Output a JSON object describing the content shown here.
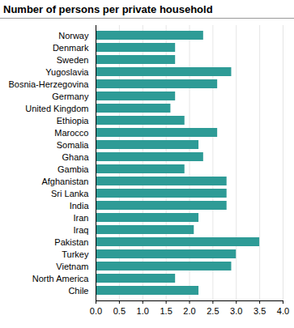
{
  "chart_data": {
    "type": "bar",
    "orientation": "horizontal",
    "title": "Number of persons per private household",
    "categories": [
      "Norway",
      "Denmark",
      "Sweden",
      "Yugoslavia",
      "Bosnia-Herzegovina",
      "Germany",
      "United Kingdom",
      "Ethiopia",
      "Marocco",
      "Somalia",
      "Ghana",
      "Gambia",
      "Afghanistan",
      "Sri Lanka",
      "India",
      "Iran",
      "Iraq",
      "Pakistan",
      "Turkey",
      "Vietnam",
      "North America",
      "Chile"
    ],
    "values": [
      2.3,
      1.7,
      1.7,
      2.9,
      2.6,
      1.7,
      1.6,
      1.9,
      2.6,
      2.2,
      2.3,
      1.9,
      2.8,
      2.8,
      2.8,
      2.2,
      2.1,
      3.5,
      3.0,
      2.9,
      1.7,
      2.2
    ],
    "color": "#2e9b96",
    "xlim": [
      0,
      4
    ],
    "xticks": [
      {
        "value": 0,
        "label": "0.0"
      },
      {
        "value": 0.5,
        "label": "0.5"
      },
      {
        "value": 1,
        "label": "1.0"
      },
      {
        "value": 1.5,
        "label": "1.5"
      },
      {
        "value": 2,
        "label": "2.0"
      },
      {
        "value": 2.5,
        "label": "2.5"
      },
      {
        "value": 3,
        "label": "3.0"
      },
      {
        "value": 3.5,
        "label": "3.5"
      },
      {
        "value": 4,
        "label": "4.0"
      }
    ],
    "grid": true
  }
}
